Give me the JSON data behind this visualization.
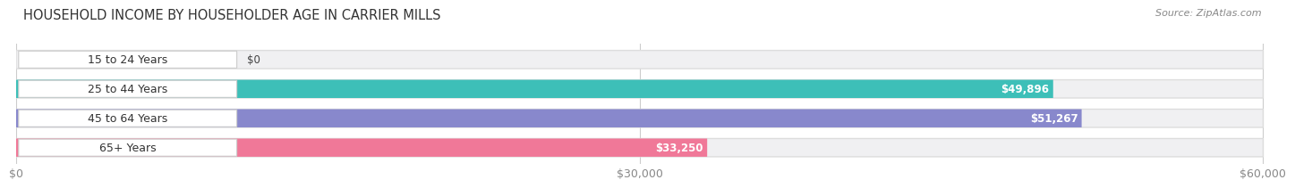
{
  "title": "HOUSEHOLD INCOME BY HOUSEHOLDER AGE IN CARRIER MILLS",
  "source": "Source: ZipAtlas.com",
  "categories": [
    "15 to 24 Years",
    "25 to 44 Years",
    "45 to 64 Years",
    "65+ Years"
  ],
  "values": [
    0,
    49896,
    51267,
    33250
  ],
  "bar_colors": [
    "#c9a0dc",
    "#3dbfb8",
    "#8888cc",
    "#f07898"
  ],
  "value_labels": [
    "$0",
    "$49,896",
    "$51,267",
    "$33,250"
  ],
  "xmax": 60000,
  "xtick_vals": [
    0,
    30000,
    60000
  ],
  "xtick_labels": [
    "$0",
    "$30,000",
    "$60,000"
  ],
  "background_color": "#ffffff",
  "bar_bg_color": "#f0f0f2",
  "bar_bg_border_color": "#dddddd",
  "bar_height": 0.62,
  "title_fontsize": 10.5,
  "label_fontsize": 9,
  "source_fontsize": 8,
  "value_label_fontsize": 8.5
}
